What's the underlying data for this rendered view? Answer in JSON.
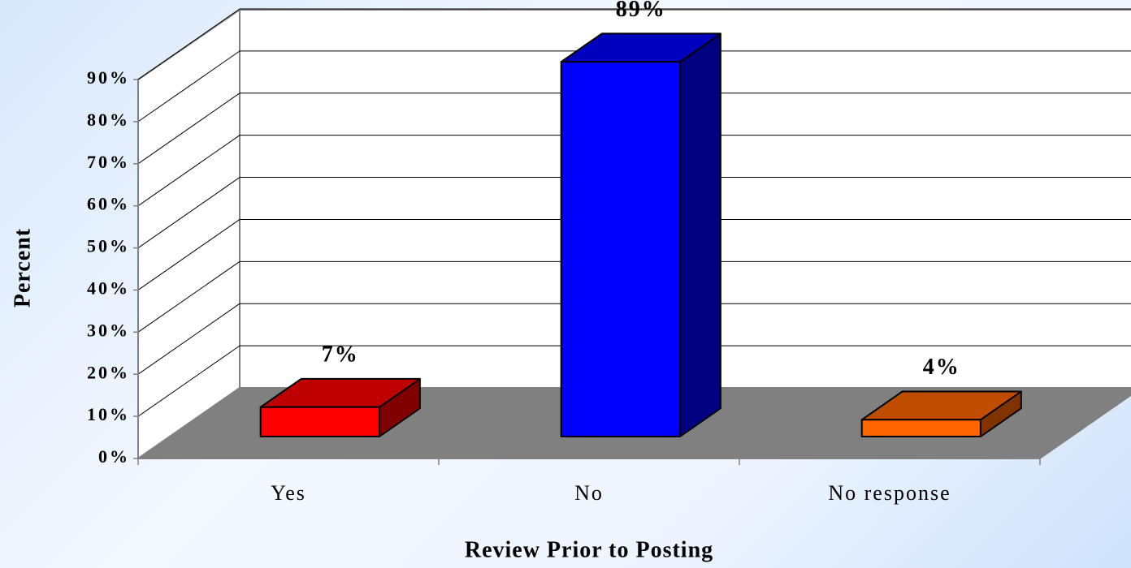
{
  "chart_data": {
    "type": "bar3d",
    "y_label": "Percent",
    "x_label": "Review Prior to Posting",
    "categories": [
      "Yes",
      "No",
      "No response"
    ],
    "values": [
      7,
      89,
      4
    ],
    "value_labels": [
      "7%",
      "89%",
      "4%"
    ],
    "colors": [
      "#ff0000",
      "#0000ff",
      "#ff6600"
    ],
    "ylim": [
      0,
      90
    ],
    "yticks": [
      {
        "value": 0,
        "label": "0%"
      },
      {
        "value": 10,
        "label": "10%"
      },
      {
        "value": 20,
        "label": "20%"
      },
      {
        "value": 30,
        "label": "30%"
      },
      {
        "value": 40,
        "label": "40%"
      },
      {
        "value": 50,
        "label": "50%"
      },
      {
        "value": 60,
        "label": "60%"
      },
      {
        "value": 70,
        "label": "70%"
      },
      {
        "value": 80,
        "label": "80%"
      },
      {
        "value": 90,
        "label": "90%"
      }
    ],
    "grid": true
  }
}
